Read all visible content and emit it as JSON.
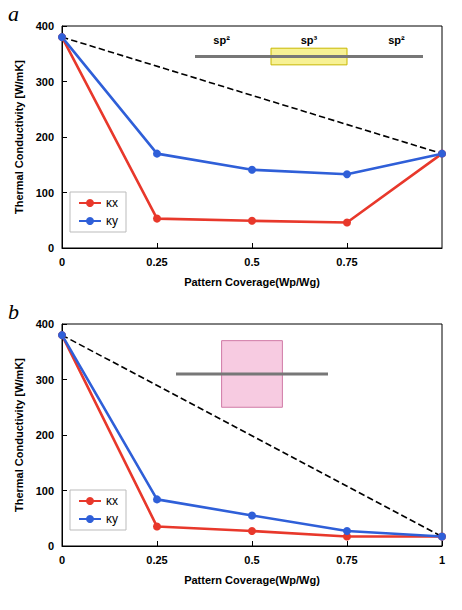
{
  "chart_data": [
    {
      "type": "line",
      "panel": "a",
      "xlabel": "Pattern Coverage(Wp/Wg)",
      "ylabel": "Thermal Conductivity [W/mK]",
      "annotations": [
        "sp²",
        "sp³",
        "sp²"
      ],
      "x": [
        0,
        0.25,
        0.5,
        0.75,
        1
      ],
      "xlim": [
        0,
        1
      ],
      "xticks": [
        0,
        0.25,
        0.5,
        0.75
      ],
      "ylim": [
        0,
        400
      ],
      "yticks": [
        0,
        100,
        200,
        300,
        400
      ],
      "grid": false,
      "legend": "lower left",
      "series": [
        {
          "name": "κx",
          "color": "#e8382b",
          "marker": "circle",
          "values": [
            380,
            53,
            49,
            46,
            170
          ]
        },
        {
          "name": "κy",
          "color": "#2f5fd8",
          "marker": "circle",
          "values": [
            380,
            170,
            141,
            133,
            170
          ]
        },
        {
          "color": "#000000",
          "marker": "none",
          "line_style": "dashed",
          "x": [
            0,
            1
          ],
          "values": [
            380,
            170
          ]
        }
      ]
    },
    {
      "type": "line",
      "panel": "b",
      "xlabel": "Pattern Coverage(Wp/Wg)",
      "ylabel": "Thermal Conductivity [W/mK]",
      "x": [
        0,
        0.25,
        0.5,
        0.75,
        1
      ],
      "xlim": [
        0,
        1
      ],
      "xticks": [
        0,
        0.25,
        0.5,
        0.75,
        1
      ],
      "ylim": [
        0,
        400
      ],
      "yticks": [
        0,
        100,
        200,
        300,
        400
      ],
      "grid": false,
      "legend": "lower left",
      "series": [
        {
          "name": "κx",
          "color": "#e8382b",
          "marker": "circle",
          "values": [
            380,
            35,
            27,
            17,
            17
          ]
        },
        {
          "name": "κy",
          "color": "#2f5fd8",
          "marker": "circle",
          "values": [
            380,
            84,
            55,
            27,
            17
          ]
        },
        {
          "color": "#000000",
          "marker": "none",
          "line_style": "dashed",
          "x": [
            0,
            1
          ],
          "values": [
            380,
            17
          ]
        }
      ]
    }
  ]
}
